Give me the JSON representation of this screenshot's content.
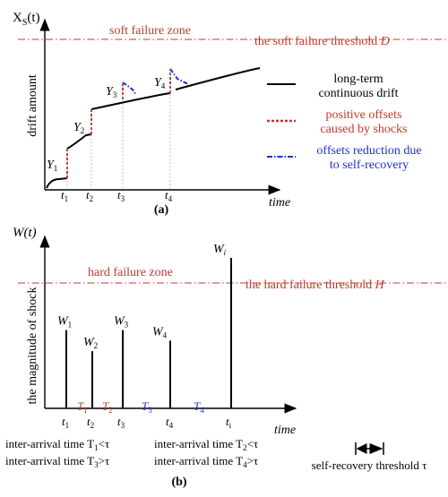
{
  "colors": {
    "black": "#000000",
    "red_label": "#c0392b",
    "red_line": "#c0392b",
    "blue": "#1f2fd0",
    "dash_red": "#c0392b"
  },
  "panel_a": {
    "y_axis_symbol": "X",
    "y_axis_subscript": "S",
    "y_axis_suffix": "(t)",
    "y_label": "drift amount",
    "x_label": "time",
    "zone_label": "soft failure zone",
    "threshold_label": "the soft failure threshold",
    "threshold_symbol": "D",
    "caption": "(a)",
    "ticks": [
      "t",
      "t",
      "t",
      "t"
    ],
    "tick_subs": [
      "1",
      "2",
      "3",
      "4"
    ],
    "marks": [
      {
        "sym": "Y",
        "sub": "1"
      },
      {
        "sym": "Y",
        "sub": "2"
      },
      {
        "sym": "Y",
        "sub": "3"
      },
      {
        "sym": "Y",
        "sub": "4"
      }
    ],
    "legend": {
      "drift_line1": "long-term",
      "drift_line2": "continuous drift",
      "shock_line1": "positive offsets",
      "shock_line2": "caused by shocks",
      "recover_line1": "offsets reduction due",
      "recover_line2": "to self-recovery"
    }
  },
  "panel_b": {
    "y_axis_label": "W(t)",
    "y_label": "the magnitude of shock",
    "x_label": "time",
    "zone_label": "hard failure zone",
    "threshold_label": "the hard failure threshold",
    "threshold_symbol": "H",
    "caption": "(b)",
    "shocks": [
      {
        "sym": "W",
        "sub": "1",
        "magnitude": 0.52
      },
      {
        "sym": "W",
        "sub": "2",
        "magnitude": 0.38
      },
      {
        "sym": "W",
        "sub": "3",
        "magnitude": 0.52
      },
      {
        "sym": "W",
        "sub": "4",
        "magnitude": 0.45
      },
      {
        "sym": "W",
        "sub": "i",
        "magnitude": 1.0
      }
    ],
    "ticks": [
      {
        "sym": "t",
        "sub": "1"
      },
      {
        "sym": "t",
        "sub": "2"
      },
      {
        "sym": "t",
        "sub": "3"
      },
      {
        "sym": "t",
        "sub": "4"
      },
      {
        "sym": "t",
        "sub": "i"
      }
    ],
    "intervals": [
      {
        "sym": "T",
        "sub": "1",
        "color": "red"
      },
      {
        "sym": "T",
        "sub": "2",
        "color": "red"
      },
      {
        "sym": "T",
        "sub": "3",
        "color": "blue"
      },
      {
        "sym": "T",
        "sub": "4",
        "color": "blue"
      }
    ],
    "notes": {
      "n1": "inter-arrival time T",
      "n1_sub": "1",
      "n1_rel": "<τ",
      "n2": "inter-arrival time T",
      "n2_sub": "2",
      "n2_rel": "<τ",
      "n3": "inter-arrival time T",
      "n3_sub": "3",
      "n3_rel": ">τ",
      "n4": "inter-arrival time T",
      "n4_sub": "4",
      "n4_rel": ">τ"
    },
    "recovery_label": "self-recovery threshold τ"
  }
}
